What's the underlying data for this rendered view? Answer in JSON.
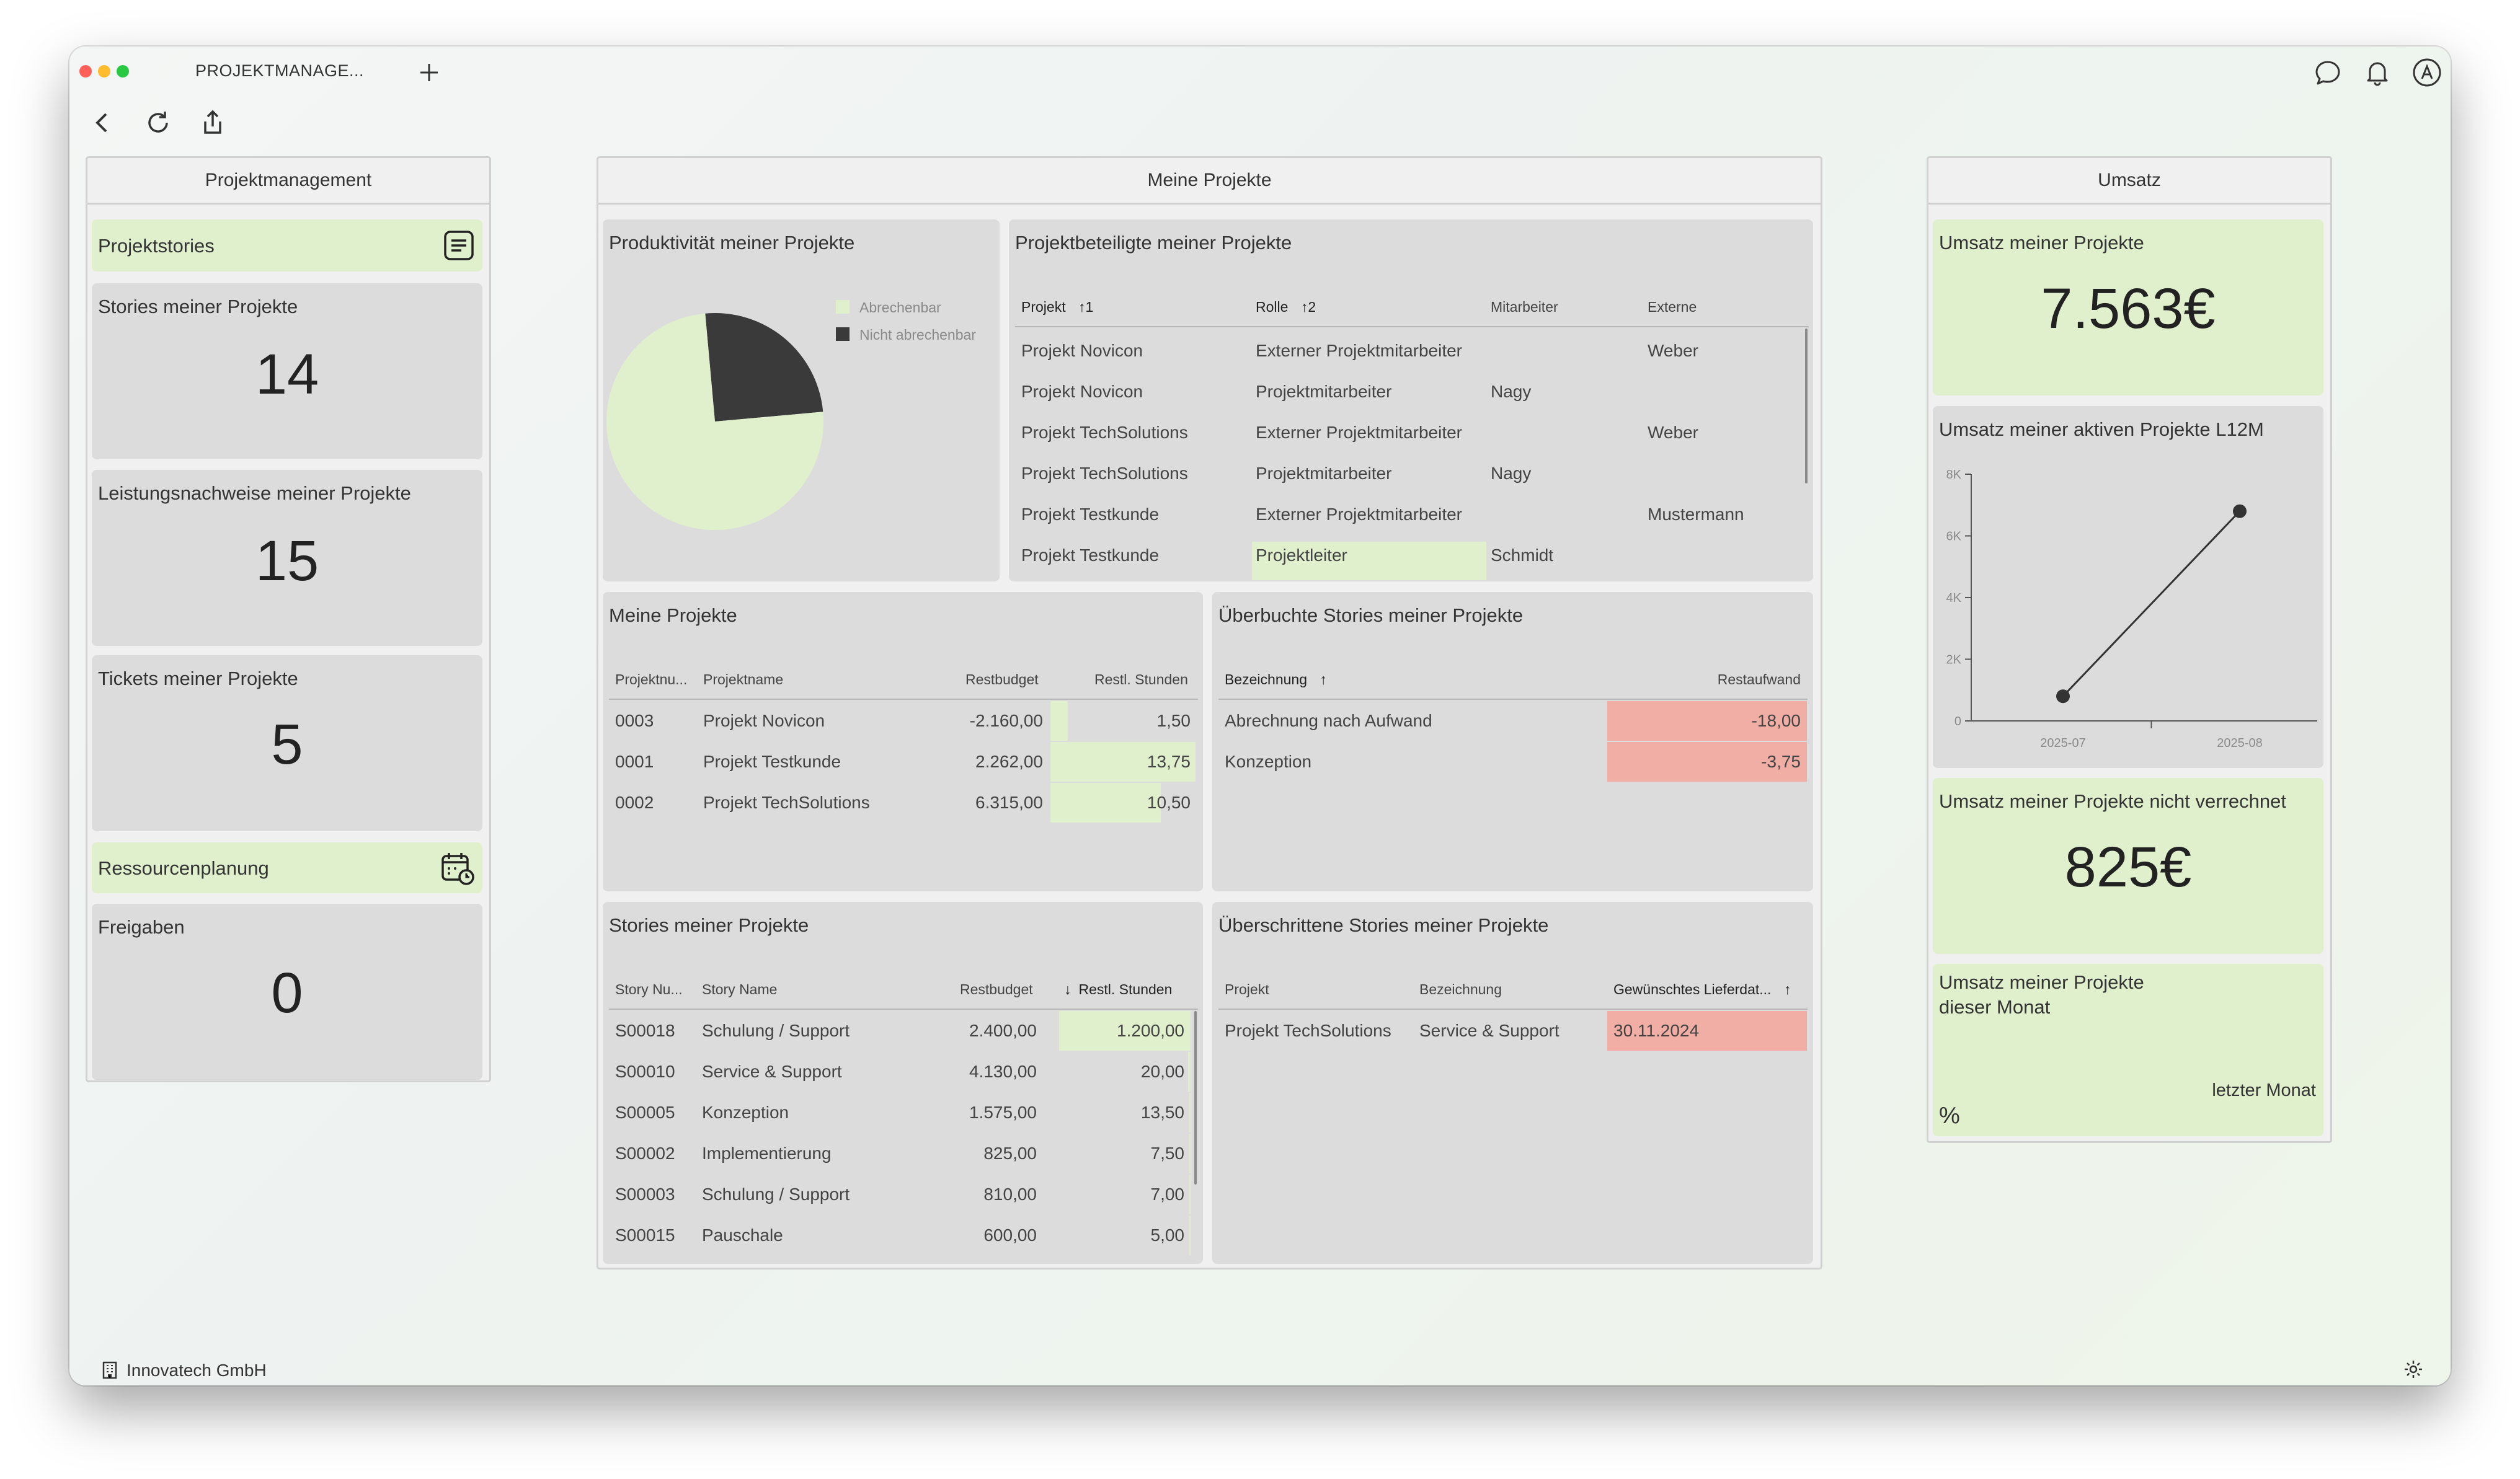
{
  "app": {
    "tab_title": "PROJEKTMANAGE..."
  },
  "footer": {
    "company": "Innovatech GmbH"
  },
  "panels": {
    "left": {
      "title": "Projektmanagement",
      "nav1": "Projektstories",
      "stories": {
        "title": "Stories meiner Projekte",
        "value": "14"
      },
      "leistung": {
        "title": "Leistungsnachweise meiner Projekte",
        "value": "15"
      },
      "tickets": {
        "title": "Tickets meiner Projekte",
        "value": "5"
      },
      "nav2": "Ressourcenplanung",
      "freigaben": {
        "title": "Freigaben",
        "value": "0"
      }
    },
    "middle": {
      "title": "Meine Projekte"
    },
    "right": {
      "title": "Umsatz",
      "umsatz": {
        "title": "Umsatz meiner Projekte",
        "value": "7.563€"
      },
      "aktiv": {
        "title": "Umsatz meiner aktiven Projekte L12M"
      },
      "nicht": {
        "title": "Umsatz meiner Projekte nicht verrechnet",
        "value": "825€"
      },
      "monat": {
        "title_line1": "Umsatz meiner Projekte",
        "title_line2": "dieser Monat",
        "compare": "letzter Monat",
        "unit": "%"
      }
    }
  },
  "produktivitaet": {
    "title": "Produktivität meiner Projekte",
    "legend": [
      {
        "label": "Abrechenbar",
        "color": "#e0f0cc"
      },
      {
        "label": "Nicht abrechenbar",
        "color": "#3a3a3a"
      }
    ]
  },
  "chart_data": [
    {
      "type": "pie",
      "title": "Produktivität meiner Projekte",
      "categories": [
        "Abrechenbar",
        "Nicht abrechenbar"
      ],
      "values": [
        75,
        25
      ],
      "colors": [
        "#e0f0cc",
        "#3a3a3a"
      ],
      "legend": "top-right"
    },
    {
      "type": "line",
      "title": "Umsatz meiner aktiven Projekte L12M",
      "x": [
        "2025-07",
        "2025-08"
      ],
      "series": [
        {
          "values": [
            800,
            6800
          ]
        }
      ],
      "yticks": [
        "0",
        "2K",
        "4K",
        "6K",
        "8K"
      ],
      "ylim": [
        0,
        8000
      ],
      "grid": false
    }
  ],
  "beteiligte": {
    "title": "Projektbeteiligte meiner Projekte",
    "headers": {
      "projekt": "Projekt",
      "projekt_sort": "1",
      "rolle": "Rolle",
      "rolle_sort": "2",
      "mitarbeiter": "Mitarbeiter",
      "externe": "Externe"
    },
    "rows": [
      {
        "projekt": "Projekt Novicon",
        "rolle": "Externer Projektmitarbeiter",
        "mitarbeiter": "",
        "externe": "Weber"
      },
      {
        "projekt": "Projekt Novicon",
        "rolle": "Projektmitarbeiter",
        "mitarbeiter": "Nagy",
        "externe": ""
      },
      {
        "projekt": "Projekt TechSolutions",
        "rolle": "Externer Projektmitarbeiter",
        "mitarbeiter": "",
        "externe": "Weber"
      },
      {
        "projekt": "Projekt TechSolutions",
        "rolle": "Projektmitarbeiter",
        "mitarbeiter": "Nagy",
        "externe": ""
      },
      {
        "projekt": "Projekt Testkunde",
        "rolle": "Externer Projektmitarbeiter",
        "mitarbeiter": "",
        "externe": "Mustermann"
      },
      {
        "projekt": "Projekt Testkunde",
        "rolle": "Projektleiter",
        "mitarbeiter": "Schmidt",
        "externe": ""
      }
    ]
  },
  "meine_projekte": {
    "title": "Meine Projekte",
    "headers": {
      "nr": "Projektnu...",
      "name": "Projektname",
      "budget": "Restbudget",
      "stunden": "Restl. Stunden"
    },
    "rows": [
      {
        "nr": "0003",
        "name": "Projekt Novicon",
        "budget": "-2.160,00",
        "stunden": "1,50",
        "fill": 0.12
      },
      {
        "nr": "0001",
        "name": "Projekt Testkunde",
        "budget": "2.262,00",
        "stunden": "13,75",
        "fill": 1.0
      },
      {
        "nr": "0002",
        "name": "Projekt TechSolutions",
        "budget": "6.315,00",
        "stunden": "10,50",
        "fill": 0.76
      }
    ]
  },
  "ueberbuchte": {
    "title": "Überbuchte Stories meiner Projekte",
    "headers": {
      "bez": "Bezeichnung",
      "rest": "Restaufwand"
    },
    "rows": [
      {
        "bez": "Abrechnung nach Aufwand",
        "rest": "-18,00"
      },
      {
        "bez": "Konzeption",
        "rest": "-3,75"
      }
    ]
  },
  "stories": {
    "title": "Stories meiner Projekte",
    "headers": {
      "nr": "Story Nu...",
      "name": "Story Name",
      "budget": "Restbudget",
      "stunden": "Restl. Stunden"
    },
    "rows": [
      {
        "nr": "S00018",
        "name": "Schulung / Support",
        "budget": "2.400,00",
        "stunden": "1.200,00",
        "fill": 1.0
      },
      {
        "nr": "S00010",
        "name": "Service & Support",
        "budget": "4.130,00",
        "stunden": "20,00",
        "fill": 0.02
      },
      {
        "nr": "S00005",
        "name": "Konzeption",
        "budget": "1.575,00",
        "stunden": "13,50",
        "fill": 0.011
      },
      {
        "nr": "S00002",
        "name": "Implementierung",
        "budget": "825,00",
        "stunden": "7,50",
        "fill": 0.006
      },
      {
        "nr": "S00003",
        "name": "Schulung / Support",
        "budget": "810,00",
        "stunden": "7,00",
        "fill": 0.006
      },
      {
        "nr": "S00015",
        "name": "Pauschale",
        "budget": "600,00",
        "stunden": "5,00",
        "fill": 0.004
      }
    ]
  },
  "ueberschrittene": {
    "title": "Überschrittene Stories meiner Projekte",
    "headers": {
      "projekt": "Projekt",
      "bez": "Bezeichnung",
      "datum": "Gewünschtes Lieferdat..."
    },
    "rows": [
      {
        "projekt": "Projekt TechSolutions",
        "bez": "Service & Support",
        "datum": "30.11.2024"
      }
    ]
  }
}
